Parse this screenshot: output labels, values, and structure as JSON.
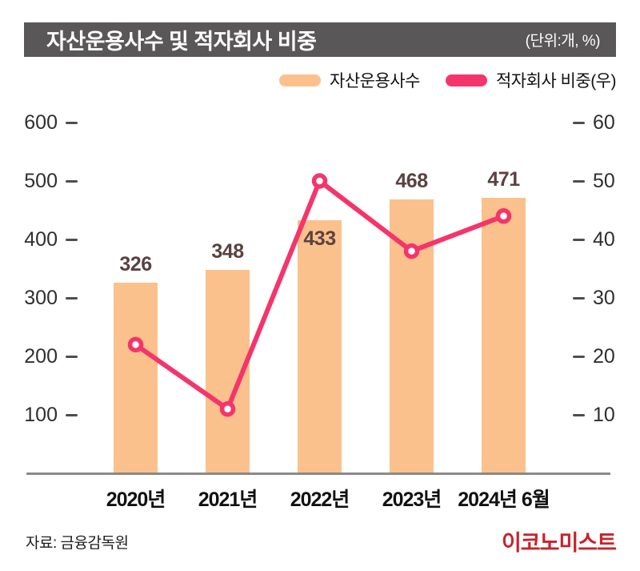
{
  "title_bar": {
    "title": "자산운용사수 및 적자회사 비중",
    "unit_label": "(단위:개, %)",
    "bg_color": "#595757",
    "text_color": "#ffffff"
  },
  "legend": {
    "items": [
      {
        "label": "자산운용사수",
        "color": "#FBC18C"
      },
      {
        "label": "적자회사 비중(우)",
        "color": "#F4356B"
      }
    ]
  },
  "chart_data": {
    "type": "combo-bar-line",
    "title": "자산운용사수 및 적자회사 비중",
    "unit": "(단위:개, %)",
    "categories": [
      "2020년",
      "2021년",
      "2022년",
      "2023년",
      "2024년 6월"
    ],
    "series": [
      {
        "name": "자산운용사수",
        "type": "bar",
        "axis": "left",
        "values": [
          326,
          348,
          433,
          468,
          471
        ],
        "color": "#FBC18C",
        "data_labels": [
          "326",
          "348",
          "433",
          "468",
          "471"
        ],
        "data_label_position": [
          "above",
          "above",
          "inside",
          "above",
          "above"
        ],
        "data_label_color": "#5B4141"
      },
      {
        "name": "적자회사 비중(우)",
        "type": "line",
        "axis": "right",
        "values": [
          22,
          11,
          50,
          38,
          44
        ],
        "color": "#F4356B",
        "marker": "open-circle-white-fill"
      }
    ],
    "left_axis": {
      "ticks": [
        600,
        500,
        400,
        300,
        200,
        100
      ],
      "min": 0,
      "max": 640
    },
    "right_axis": {
      "ticks": [
        60,
        50,
        40,
        30,
        20,
        10
      ],
      "min": 0,
      "max": 64
    },
    "grid": false,
    "legend_position": "top-right",
    "colors": {
      "tick_text": "#2f2f2f",
      "tick_mark": "#4e4e4e",
      "baseline": "#8a8a8a"
    }
  },
  "footer": {
    "source": "자료: 금융감독원",
    "logo": "이코노미스트",
    "logo_color": "#C8232B"
  }
}
